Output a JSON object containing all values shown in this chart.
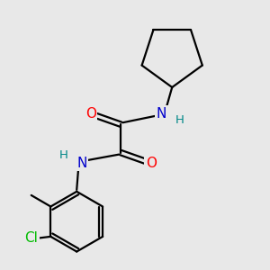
{
  "background_color": "#e8e8e8",
  "bond_color": "#000000",
  "bond_lw": 1.6,
  "atom_colors": {
    "O": "#ff0000",
    "N": "#0000cc",
    "Cl": "#00bb00",
    "H": "#008888",
    "C": "#000000"
  },
  "font_size_atom": 11,
  "font_size_H": 9.5
}
